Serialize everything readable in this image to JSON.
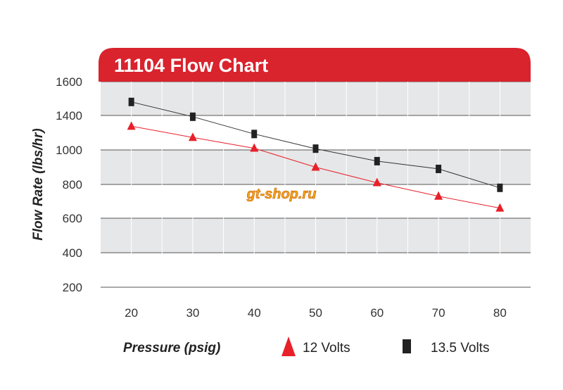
{
  "chart_data": {
    "type": "line",
    "title": "11104 Flow Chart",
    "xlabel": "Pressure (psig)",
    "ylabel": "Flow Rate (lbs/hr)",
    "x": [
      20,
      30,
      40,
      50,
      60,
      70,
      80
    ],
    "x_ticks": [
      "20",
      "30",
      "40",
      "50",
      "60",
      "70",
      "80"
    ],
    "y_ticks": [
      "200",
      "400",
      "600",
      "800",
      "1000",
      "1400",
      "1600"
    ],
    "xlim": [
      15,
      85
    ],
    "ylim": [
      200,
      1600
    ],
    "grid": true,
    "legend": "bottom",
    "series": [
      {
        "name": "12 Volts",
        "marker": "triangle",
        "color": "#e8202a",
        "values": [
          1275,
          1145,
          1020,
          900,
          810,
          730,
          660
        ]
      },
      {
        "name": "13.5 Volts",
        "marker": "square",
        "color": "#222222",
        "values": [
          1480,
          1385,
          1185,
          1015,
          935,
          890,
          780
        ]
      }
    ],
    "colors": {
      "header": "#d9232d",
      "band_light": "#e6e7e8",
      "band_white": "#ffffff"
    },
    "watermark": "gt-shop.ru"
  }
}
